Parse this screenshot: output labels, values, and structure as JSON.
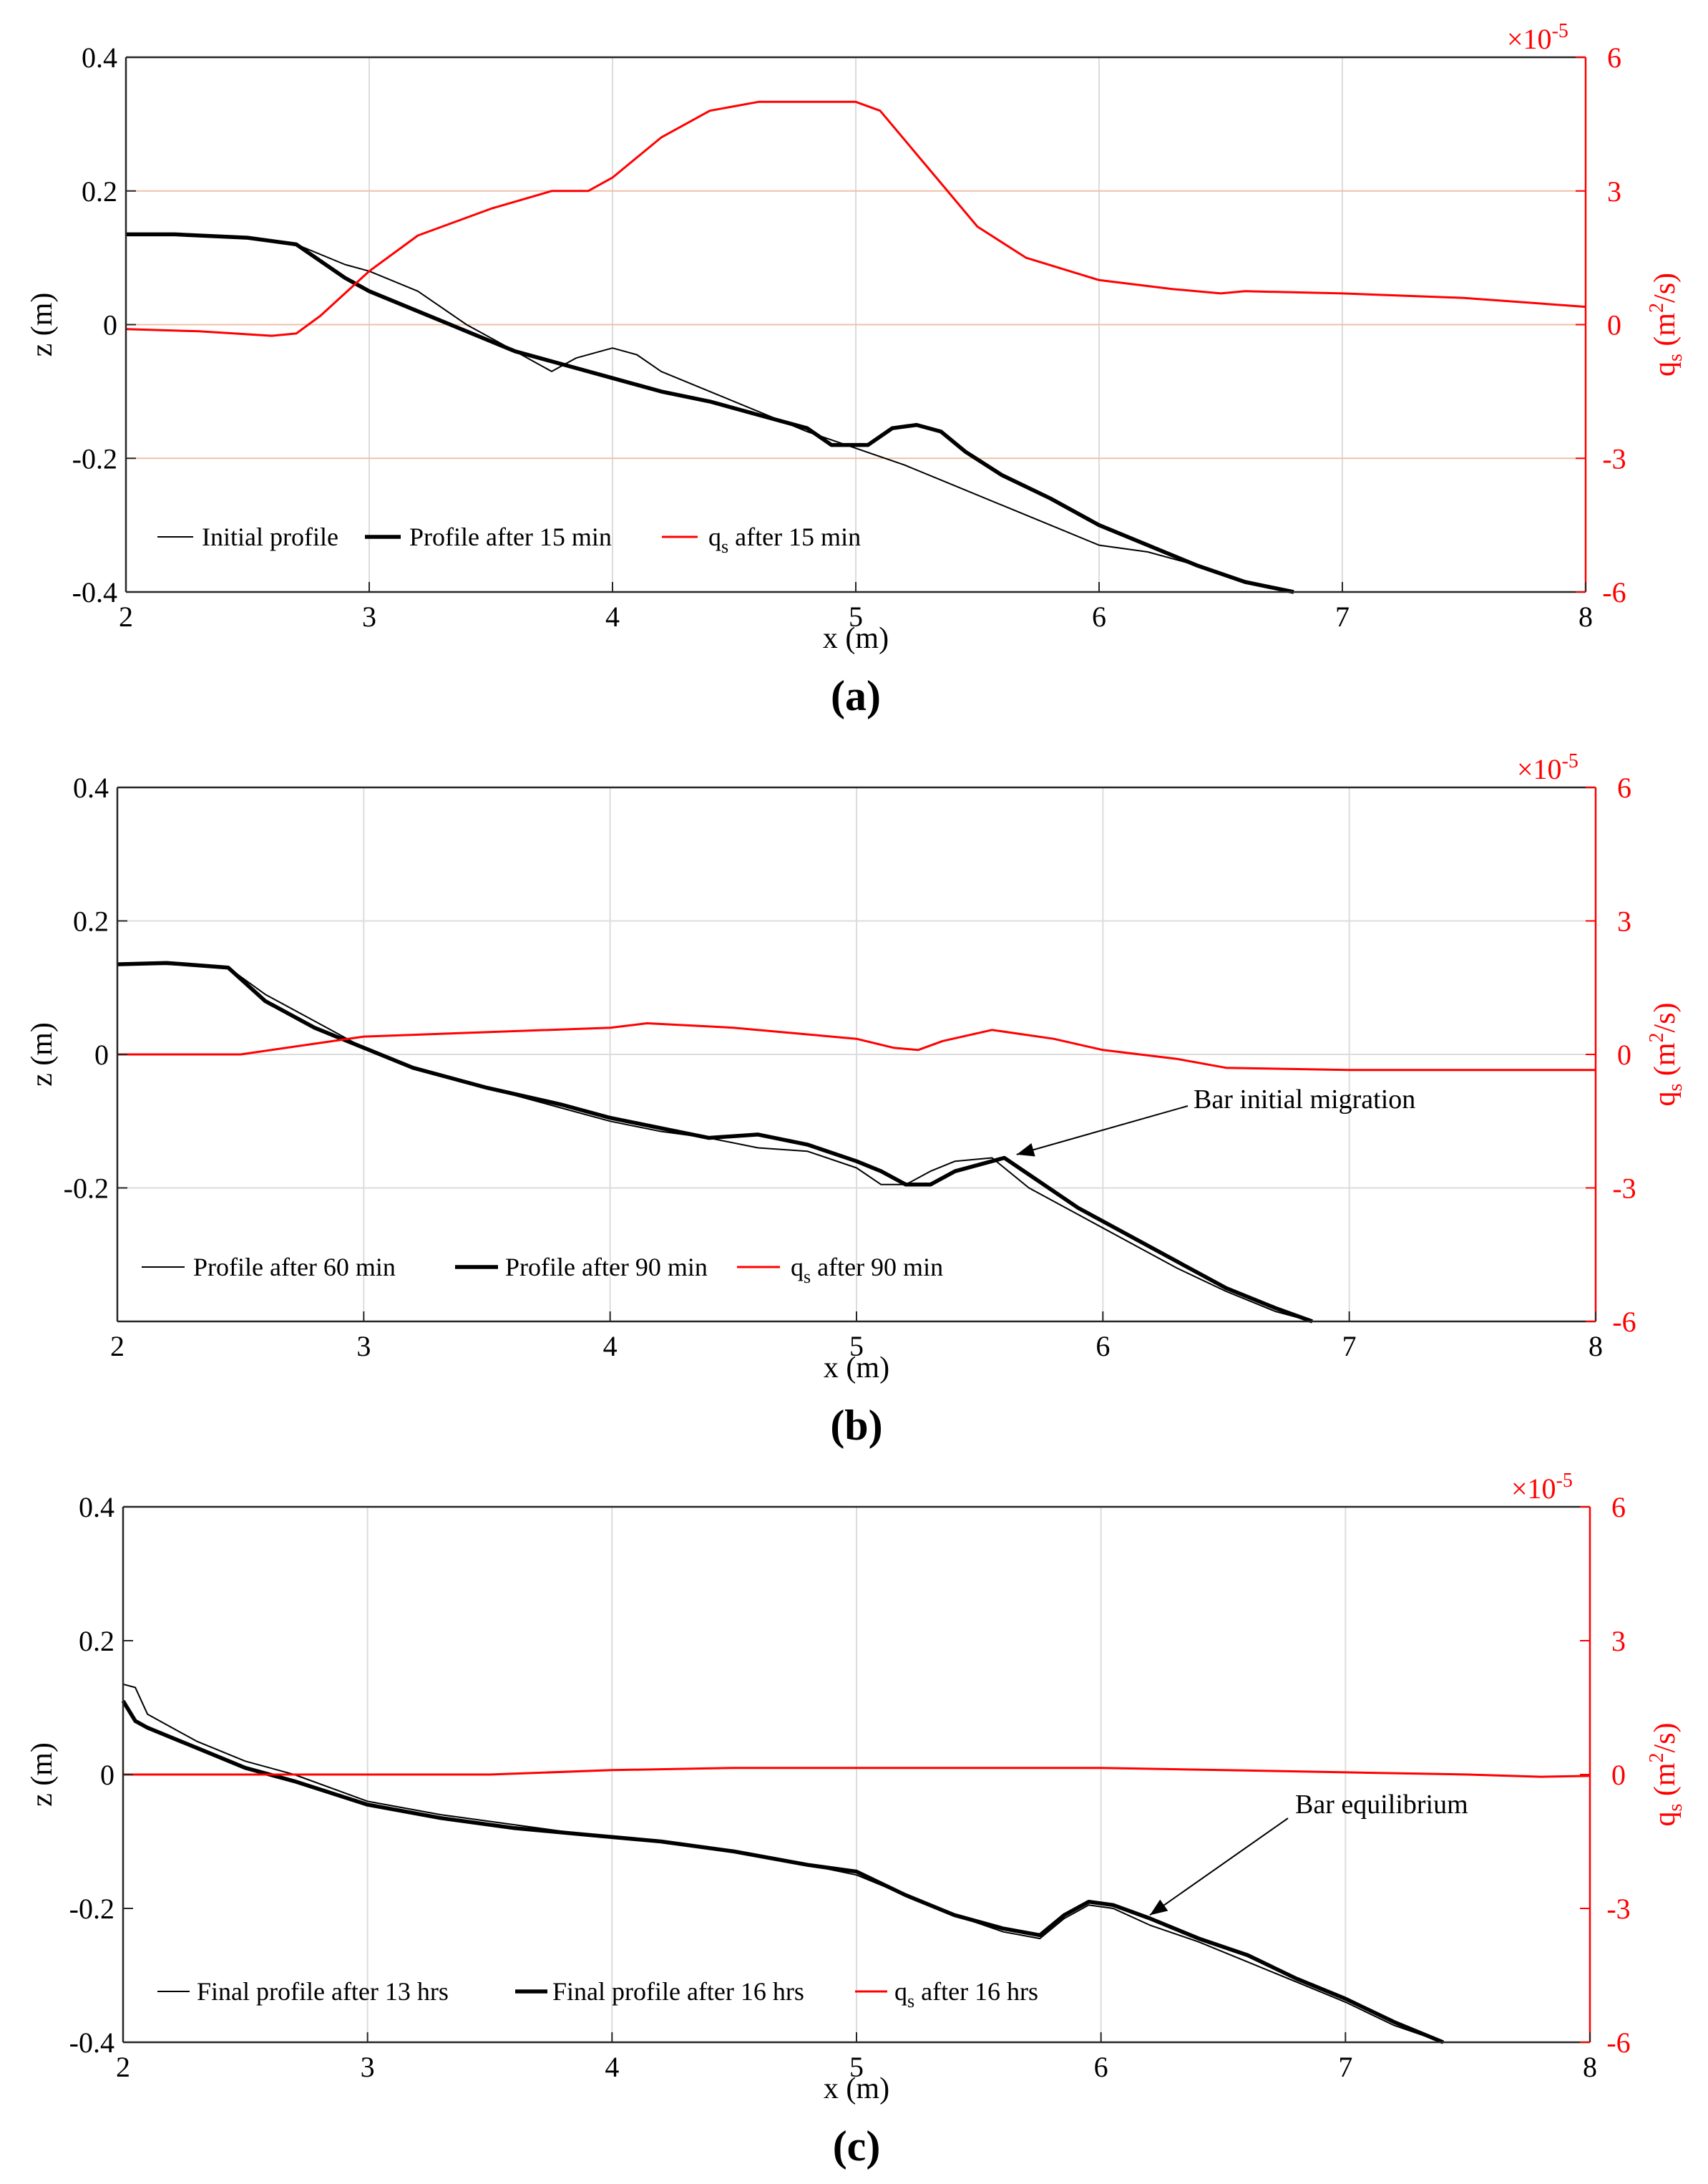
{
  "colors": {
    "profile": "#000000",
    "qs": "#ff0000",
    "grid": "#dcdcdc",
    "ref_line": "#f0c0a8",
    "axis": "#262626"
  },
  "chart_data": [
    {
      "type": "line",
      "panel_label": "(a)",
      "xlabel": "x (m)",
      "ylabel_left": "z (m)",
      "ylabel_right": "q_s (m^2/s)",
      "right_multiplier": "×10^-5",
      "xlim": [
        2,
        8
      ],
      "ylim_left": [
        -0.4,
        0.4
      ],
      "ylim_right": [
        -6,
        6
      ],
      "xticks": [
        "2",
        "3",
        "4",
        "5",
        "6",
        "7",
        "8"
      ],
      "yticks_left": [
        "0.4",
        "0.2",
        "0",
        "-0.2",
        "-0.4"
      ],
      "yticks_right": [
        "6",
        "3",
        "0",
        "-3",
        "-6"
      ],
      "grid": "vertical only, plus horizontal reference lines at right-axis -3, 0, 3",
      "legend_position": "bottom-left",
      "series": [
        {
          "name": "Initial profile",
          "axis": "left",
          "style": "thin",
          "x": [
            2.0,
            2.2,
            2.5,
            2.7,
            2.9,
            3.0,
            3.2,
            3.4,
            3.6,
            3.75,
            3.85,
            3.95,
            4.0,
            4.1,
            4.2,
            4.4,
            4.6,
            4.8,
            5.0,
            5.2,
            5.4,
            5.6,
            5.8,
            6.0,
            6.2,
            6.4,
            6.6,
            6.8
          ],
          "y": [
            0.135,
            0.135,
            0.13,
            0.12,
            0.09,
            0.08,
            0.05,
            0.0,
            -0.04,
            -0.07,
            -0.05,
            -0.04,
            -0.035,
            -0.045,
            -0.07,
            -0.1,
            -0.13,
            -0.16,
            -0.185,
            -0.21,
            -0.24,
            -0.27,
            -0.3,
            -0.33,
            -0.34,
            -0.36,
            -0.385,
            -0.4
          ]
        },
        {
          "name": "Profile after 15 min",
          "axis": "left",
          "style": "thick",
          "x": [
            2.0,
            2.2,
            2.5,
            2.7,
            2.9,
            3.0,
            3.2,
            3.4,
            3.6,
            3.8,
            4.0,
            4.2,
            4.4,
            4.6,
            4.8,
            4.9,
            5.0,
            5.05,
            5.15,
            5.25,
            5.35,
            5.45,
            5.6,
            5.8,
            6.0,
            6.2,
            6.4,
            6.6,
            6.8
          ],
          "y": [
            0.135,
            0.135,
            0.13,
            0.12,
            0.07,
            0.05,
            0.02,
            -0.01,
            -0.04,
            -0.06,
            -0.08,
            -0.1,
            -0.115,
            -0.135,
            -0.155,
            -0.18,
            -0.18,
            -0.18,
            -0.155,
            -0.15,
            -0.16,
            -0.19,
            -0.225,
            -0.26,
            -0.3,
            -0.33,
            -0.36,
            -0.385,
            -0.4
          ]
        },
        {
          "name": "q_s after 15 min",
          "axis": "right",
          "style": "red",
          "x": [
            2.0,
            2.3,
            2.6,
            2.7,
            2.8,
            3.0,
            3.2,
            3.5,
            3.75,
            3.9,
            4.0,
            4.2,
            4.4,
            4.6,
            4.7,
            4.8,
            5.0,
            5.1,
            5.3,
            5.5,
            5.7,
            6.0,
            6.3,
            6.5,
            6.6,
            7.0,
            7.5,
            8.0
          ],
          "y": [
            -0.1,
            -0.15,
            -0.25,
            -0.2,
            0.2,
            1.2,
            2.0,
            2.6,
            3.0,
            3.0,
            3.3,
            4.2,
            4.8,
            5.0,
            5.0,
            5.0,
            5.0,
            4.8,
            3.5,
            2.2,
            1.5,
            1.0,
            0.8,
            0.7,
            0.75,
            0.7,
            0.6,
            0.4
          ]
        }
      ]
    },
    {
      "type": "line",
      "panel_label": "(b)",
      "xlabel": "x (m)",
      "ylabel_left": "z (m)",
      "ylabel_right": "q_s (m^2/s)",
      "right_multiplier": "×10^-5",
      "xlim": [
        2,
        8
      ],
      "ylim_left": [
        -0.4,
        0.4
      ],
      "ylim_right": [
        -6,
        6
      ],
      "xticks": [
        "2",
        "3",
        "4",
        "5",
        "6",
        "7",
        "8"
      ],
      "yticks_left": [
        "0.4",
        "0.2",
        "0",
        "-0.2"
      ],
      "yticks_right": [
        "6",
        "3",
        "0",
        "-3",
        "-6"
      ],
      "grid": "both",
      "legend_position": "bottom-left",
      "annotation": {
        "text": "Bar initial migration",
        "points_to": [
          5.65,
          -0.15
        ]
      },
      "series": [
        {
          "name": "Profile after 60  min",
          "axis": "left",
          "style": "thin",
          "x": [
            2.0,
            2.2,
            2.45,
            2.6,
            2.8,
            3.0,
            3.2,
            3.5,
            3.8,
            4.0,
            4.2,
            4.4,
            4.6,
            4.8,
            5.0,
            5.1,
            5.2,
            5.3,
            5.4,
            5.55,
            5.7,
            5.9,
            6.1,
            6.3,
            6.5,
            6.7,
            6.85
          ],
          "y": [
            0.135,
            0.135,
            0.13,
            0.09,
            0.05,
            0.01,
            -0.02,
            -0.05,
            -0.08,
            -0.1,
            -0.115,
            -0.125,
            -0.14,
            -0.145,
            -0.17,
            -0.195,
            -0.195,
            -0.175,
            -0.16,
            -0.155,
            -0.2,
            -0.24,
            -0.28,
            -0.32,
            -0.355,
            -0.385,
            -0.4
          ]
        },
        {
          "name": "Profile after 90 min",
          "axis": "left",
          "style": "thick",
          "x": [
            2.0,
            2.2,
            2.45,
            2.6,
            2.8,
            3.0,
            3.2,
            3.5,
            3.8,
            4.0,
            4.2,
            4.4,
            4.6,
            4.8,
            5.0,
            5.1,
            5.2,
            5.3,
            5.4,
            5.6,
            5.7,
            5.9,
            6.1,
            6.3,
            6.5,
            6.7,
            6.85
          ],
          "y": [
            0.135,
            0.137,
            0.13,
            0.08,
            0.04,
            0.01,
            -0.02,
            -0.05,
            -0.075,
            -0.095,
            -0.11,
            -0.125,
            -0.12,
            -0.135,
            -0.16,
            -0.175,
            -0.195,
            -0.195,
            -0.175,
            -0.155,
            -0.18,
            -0.23,
            -0.27,
            -0.31,
            -0.35,
            -0.38,
            -0.4
          ]
        },
        {
          "name": "q_s after 90 min",
          "axis": "right",
          "style": "red",
          "x": [
            2.0,
            2.5,
            3.0,
            3.5,
            4.0,
            4.15,
            4.5,
            4.8,
            5.0,
            5.15,
            5.25,
            5.35,
            5.55,
            5.8,
            6.0,
            6.3,
            6.5,
            7.0,
            7.5,
            8.0
          ],
          "y": [
            0.0,
            0.0,
            0.4,
            0.5,
            0.6,
            0.7,
            0.6,
            0.45,
            0.35,
            0.15,
            0.1,
            0.3,
            0.55,
            0.35,
            0.1,
            -0.1,
            -0.3,
            -0.35,
            -0.35,
            -0.35
          ]
        }
      ]
    },
    {
      "type": "line",
      "panel_label": "(c)",
      "xlabel": "x (m)",
      "ylabel_left": "z (m)",
      "ylabel_right": "q_s (m^2/s)",
      "right_multiplier": "×10^-5",
      "xlim": [
        2,
        8
      ],
      "ylim_left": [
        -0.4,
        0.4
      ],
      "ylim_right": [
        -6,
        6
      ],
      "xticks": [
        "2",
        "3",
        "4",
        "5",
        "6",
        "7",
        "8"
      ],
      "yticks_left": [
        "0.4",
        "0.2",
        "0",
        "-0.2",
        "-0.4"
      ],
      "yticks_right": [
        "6",
        "3",
        "0",
        "-3",
        "-6"
      ],
      "grid": "vertical only",
      "legend_position": "bottom-left",
      "annotation": {
        "text": "Bar equilibrium",
        "points_to": [
          6.2,
          -0.21
        ]
      },
      "series": [
        {
          "name": "Final profile after 13 hrs",
          "axis": "left",
          "style": "thin",
          "x": [
            2.0,
            2.05,
            2.1,
            2.3,
            2.5,
            2.7,
            3.0,
            3.3,
            3.6,
            3.9,
            4.2,
            4.5,
            4.8,
            5.0,
            5.2,
            5.4,
            5.6,
            5.75,
            5.85,
            5.95,
            6.05,
            6.2,
            6.4,
            6.6,
            6.8,
            7.0,
            7.2,
            7.4
          ],
          "y": [
            0.135,
            0.13,
            0.09,
            0.05,
            0.02,
            0.0,
            -0.04,
            -0.06,
            -0.075,
            -0.09,
            -0.1,
            -0.115,
            -0.135,
            -0.15,
            -0.18,
            -0.21,
            -0.235,
            -0.245,
            -0.215,
            -0.195,
            -0.2,
            -0.225,
            -0.25,
            -0.28,
            -0.31,
            -0.34,
            -0.375,
            -0.4
          ]
        },
        {
          "name": "Final profile after 16 hrs",
          "axis": "left",
          "style": "thick",
          "x": [
            2.0,
            2.05,
            2.1,
            2.3,
            2.5,
            2.7,
            3.0,
            3.3,
            3.6,
            3.9,
            4.2,
            4.5,
            4.8,
            5.0,
            5.2,
            5.4,
            5.6,
            5.75,
            5.85,
            5.95,
            6.05,
            6.2,
            6.4,
            6.6,
            6.8,
            7.0,
            7.2,
            7.4
          ],
          "y": [
            0.11,
            0.08,
            0.07,
            0.04,
            0.01,
            -0.01,
            -0.045,
            -0.065,
            -0.08,
            -0.09,
            -0.1,
            -0.115,
            -0.135,
            -0.145,
            -0.18,
            -0.21,
            -0.23,
            -0.24,
            -0.21,
            -0.19,
            -0.195,
            -0.215,
            -0.245,
            -0.27,
            -0.305,
            -0.335,
            -0.37,
            -0.4
          ]
        },
        {
          "name": "q_s after 16 hrs",
          "axis": "right",
          "style": "red",
          "x": [
            2.0,
            2.5,
            3.0,
            3.5,
            4.0,
            4.5,
            5.0,
            5.5,
            6.0,
            6.5,
            7.0,
            7.5,
            7.8,
            8.0
          ],
          "y": [
            0.0,
            0.0,
            0.0,
            0.0,
            0.1,
            0.15,
            0.15,
            0.15,
            0.15,
            0.1,
            0.05,
            0.0,
            -0.05,
            -0.03
          ]
        }
      ]
    }
  ]
}
